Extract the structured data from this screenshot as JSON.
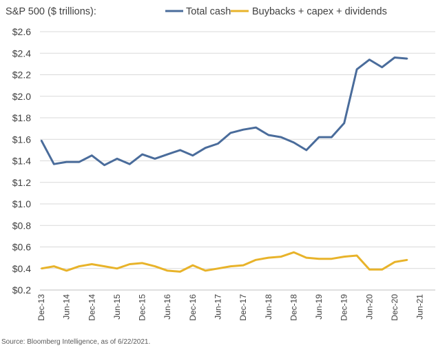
{
  "chart_data": {
    "type": "line",
    "title": "S&P 500 ($ trillions):",
    "ylim": [
      0.2,
      2.6
    ],
    "y_ticks": [
      "$2.6",
      "$2.4",
      "$2.2",
      "$2.0",
      "$1.8",
      "$1.6",
      "$1.4",
      "$1.2",
      "$1.0",
      "$0.8",
      "$0.6",
      "$0.4",
      "$0.2"
    ],
    "x_tick_labels": [
      "Dec-13",
      "Jun-14",
      "Dec-14",
      "Jun-15",
      "Dec-15",
      "Jun-16",
      "Dec-16",
      "Jun-17",
      "Dec-17",
      "Jun-18",
      "Dec-18",
      "Jun-19",
      "Dec-19",
      "Jun-20",
      "Dec-20",
      "Jun-21"
    ],
    "grid": true,
    "legend_position": "top",
    "series": [
      {
        "name": "Total cash",
        "color": "#4a6c9b",
        "values": [
          1.59,
          1.37,
          1.39,
          1.39,
          1.45,
          1.36,
          1.42,
          1.37,
          1.46,
          1.42,
          1.46,
          1.5,
          1.45,
          1.52,
          1.56,
          1.66,
          1.69,
          1.71,
          1.64,
          1.62,
          1.57,
          1.5,
          1.62,
          1.62,
          1.75,
          2.25,
          2.34,
          2.27,
          2.36,
          2.35
        ]
      },
      {
        "name": "Buybacks + capex + dividends",
        "color": "#e8b32a",
        "values": [
          0.4,
          0.42,
          0.38,
          0.42,
          0.44,
          0.42,
          0.4,
          0.44,
          0.45,
          0.42,
          0.38,
          0.37,
          0.43,
          0.38,
          0.4,
          0.42,
          0.43,
          0.48,
          0.5,
          0.51,
          0.55,
          0.5,
          0.49,
          0.49,
          0.51,
          0.52,
          0.39,
          0.39,
          0.46,
          0.48
        ]
      }
    ]
  },
  "source": "Source: Bloomberg Intelligence, as of 6/22/2021."
}
